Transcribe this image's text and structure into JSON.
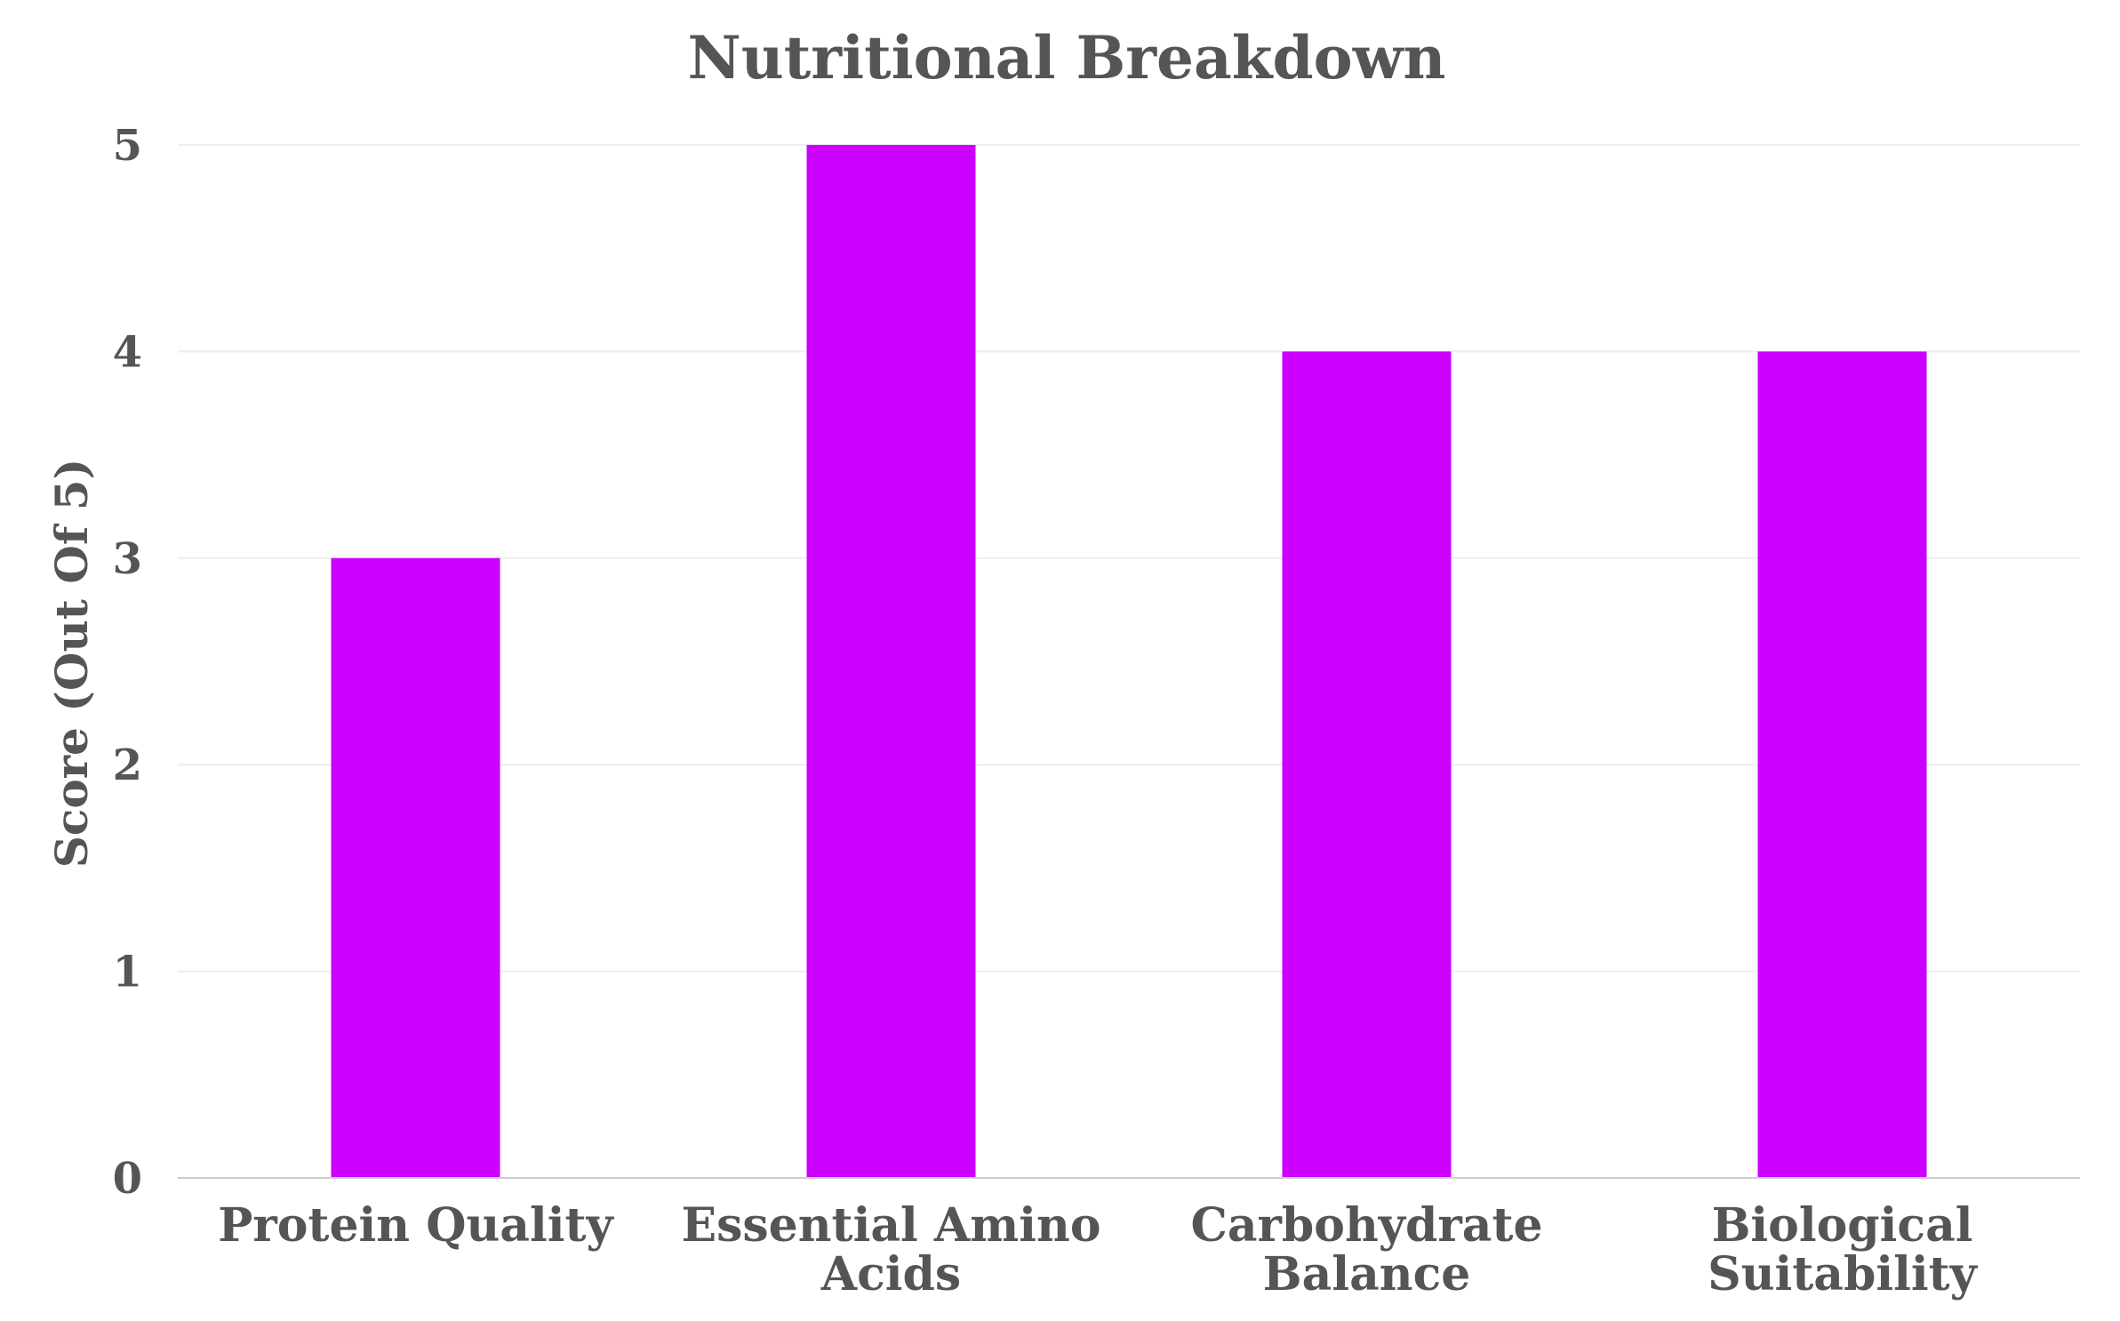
{
  "chart_data": {
    "type": "bar",
    "title": "Nutritional Breakdown",
    "xlabel": "",
    "ylabel": "Score (Out Of 5)",
    "categories": [
      [
        "Protein Quality"
      ],
      [
        "Essential Amino",
        "Acids"
      ],
      [
        "Carbohydrate",
        "Balance"
      ],
      [
        "Biological",
        "Suitability"
      ]
    ],
    "values": [
      3,
      5,
      4,
      4
    ],
    "ylim": [
      0,
      5
    ],
    "yticks": [
      "0",
      "1",
      "2",
      "3",
      "4",
      "5"
    ],
    "grid": true,
    "legend": "none",
    "bar_color": "#cc00ff"
  }
}
